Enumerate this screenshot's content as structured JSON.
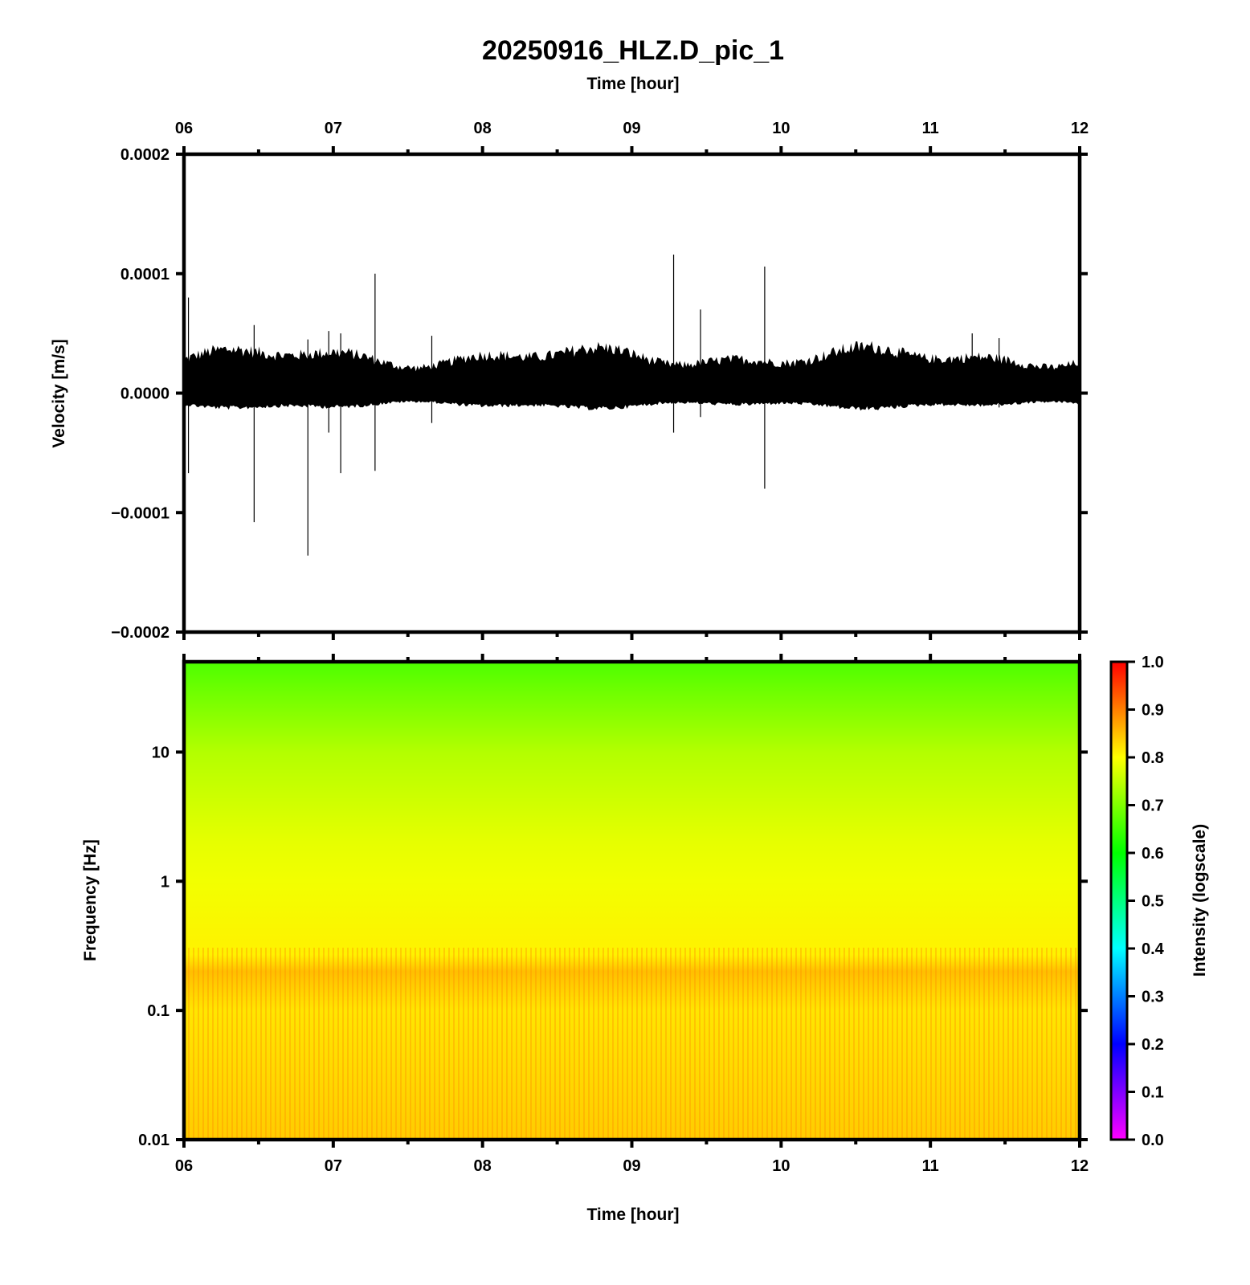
{
  "chart_data": [
    {
      "type": "line",
      "title": "20250916_HLZ.D_pic_1",
      "x_top_label": "Time [hour]",
      "ylabel": "Velocity [m/s]",
      "xlim": [
        6,
        12
      ],
      "ylim": [
        -0.0002,
        0.0002
      ],
      "x_ticks": [
        "06",
        "07",
        "08",
        "09",
        "10",
        "11",
        "12"
      ],
      "y_ticks": [
        "0.0002",
        "0.0001",
        "0.0000",
        "−0.0001",
        "−0.0002"
      ],
      "noise_band": {
        "upper": 3e-05,
        "lower": -1e-05
      },
      "spikes": [
        {
          "t": 6.03,
          "max": 8e-05,
          "min": -6.7e-05
        },
        {
          "t": 6.47,
          "max": 5.7e-05,
          "min": -0.000108
        },
        {
          "t": 6.83,
          "max": 4.5e-05,
          "min": -0.000136
        },
        {
          "t": 6.97,
          "max": 5.2e-05,
          "min": -3.3e-05
        },
        {
          "t": 7.05,
          "max": 5e-05,
          "min": -6.7e-05
        },
        {
          "t": 7.28,
          "max": 0.0001,
          "min": -6.5e-05
        },
        {
          "t": 7.66,
          "max": 4.8e-05,
          "min": -2.5e-05
        },
        {
          "t": 9.28,
          "max": 0.000116,
          "min": -3.3e-05
        },
        {
          "t": 9.46,
          "max": 7e-05,
          "min": -2e-05
        },
        {
          "t": 9.89,
          "max": 0.000106,
          "min": -8e-05
        },
        {
          "t": 11.28,
          "max": 5e-05,
          "min": -1e-05
        },
        {
          "t": 11.46,
          "max": 4.6e-05,
          "min": -1.2e-05
        }
      ],
      "series": [
        {
          "values": []
        }
      ]
    },
    {
      "type": "heatmap",
      "xlabel": "Time [hour]",
      "ylabel": "Frequency [Hz]",
      "xlim": [
        6,
        12
      ],
      "ylim": [
        0.01,
        50
      ],
      "yscale": "log",
      "x_ticks": [
        "06",
        "07",
        "08",
        "09",
        "10",
        "11",
        "12"
      ],
      "y_ticks": [
        {
          "value": 0.01,
          "label": "0.01"
        },
        {
          "value": 0.1,
          "label": "0.1"
        },
        {
          "value": 1,
          "label": "1"
        },
        {
          "value": 10,
          "label": "10"
        }
      ],
      "intensity_profile": [
        {
          "freq": 50,
          "intensity": 0.66
        },
        {
          "freq": 10,
          "intensity": 0.74
        },
        {
          "freq": 2,
          "intensity": 0.78
        },
        {
          "freq": 1,
          "intensity": 0.79
        },
        {
          "freq": 0.27,
          "intensity": 0.81
        },
        {
          "freq": 0.2,
          "intensity": 0.85
        },
        {
          "freq": 0.1,
          "intensity": 0.82
        },
        {
          "freq": 0.01,
          "intensity": 0.84
        }
      ],
      "colorbar": {
        "label": "Intensity (logscale)",
        "ticks": [
          "0.0",
          "0.1",
          "0.2",
          "0.3",
          "0.4",
          "0.5",
          "0.6",
          "0.7",
          "0.8",
          "0.9",
          "1.0"
        ],
        "range": [
          0,
          1
        ],
        "colormap": [
          "#ff00ff",
          "#0000ff",
          "#00ffff",
          "#00ff00",
          "#ffff00",
          "#ff0000"
        ]
      }
    }
  ]
}
